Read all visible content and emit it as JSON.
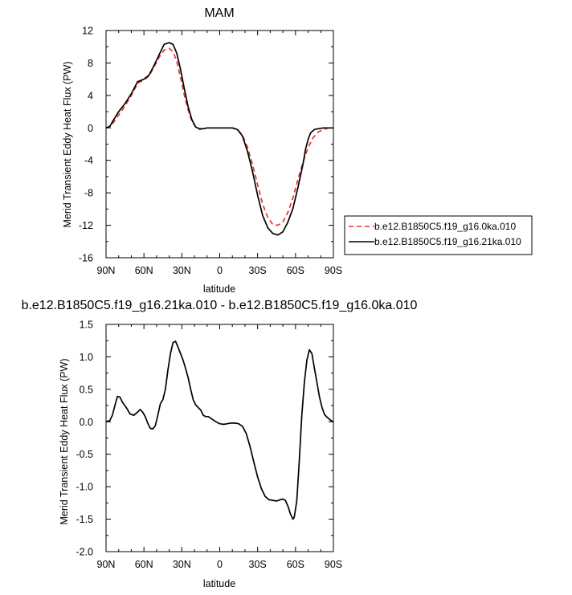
{
  "chart_data": [
    {
      "type": "line",
      "title": "MAM",
      "xlabel": "latitude",
      "ylabel": "Merid Transient Eddy Heat Flux (PW)",
      "xlim": [
        90,
        -90
      ],
      "ylim": [
        -16,
        12
      ],
      "x_ticks": [
        90,
        60,
        30,
        0,
        -30,
        -60,
        -90
      ],
      "x_tick_labels": [
        "90N",
        "60N",
        "30N",
        "0",
        "30S",
        "60S",
        "90S"
      ],
      "y_ticks": [
        -16,
        -12,
        -8,
        -4,
        0,
        4,
        8,
        12
      ],
      "y_tick_labels": [
        "-16",
        "-12",
        "-8",
        "-4",
        "0",
        "4",
        "8",
        "12"
      ],
      "legend": "right-outside",
      "series": [
        {
          "name": "b.e12.B1850C5.f19_g16.0ka.010",
          "color": "#e8322d",
          "style": "dashed",
          "points": [
            [
              90,
              0
            ],
            [
              87,
              0.1
            ],
            [
              84,
              0.7
            ],
            [
              80,
              1.6
            ],
            [
              75,
              2.7
            ],
            [
              70,
              4.0
            ],
            [
              65,
              5.5
            ],
            [
              60,
              5.9
            ],
            [
              56,
              6.4
            ],
            [
              52,
              7.5
            ],
            [
              48,
              8.7
            ],
            [
              44,
              9.6
            ],
            [
              40,
              9.8
            ],
            [
              37,
              9.4
            ],
            [
              34,
              8.2
            ],
            [
              31,
              6.2
            ],
            [
              28,
              4.0
            ],
            [
              25,
              2.2
            ],
            [
              22,
              0.8
            ],
            [
              19,
              0.1
            ],
            [
              16,
              -0.2
            ],
            [
              13,
              -0.1
            ],
            [
              10,
              0
            ],
            [
              5,
              0
            ],
            [
              0,
              0
            ],
            [
              -5,
              0
            ],
            [
              -10,
              0
            ],
            [
              -14,
              -0.2
            ],
            [
              -18,
              -0.9
            ],
            [
              -22,
              -2.4
            ],
            [
              -26,
              -4.5
            ],
            [
              -30,
              -7.0
            ],
            [
              -34,
              -9.4
            ],
            [
              -38,
              -11.0
            ],
            [
              -42,
              -11.9
            ],
            [
              -46,
              -12.0
            ],
            [
              -50,
              -11.6
            ],
            [
              -54,
              -10.4
            ],
            [
              -58,
              -8.6
            ],
            [
              -62,
              -6.3
            ],
            [
              -66,
              -4.2
            ],
            [
              -70,
              -2.4
            ],
            [
              -74,
              -1.2
            ],
            [
              -78,
              -0.5
            ],
            [
              -82,
              -0.2
            ],
            [
              -86,
              0
            ],
            [
              -90,
              0
            ]
          ]
        },
        {
          "name": "b.e12.B1850C5.f19_g16.21ka.010",
          "color": "#000000",
          "style": "solid",
          "points": [
            [
              90,
              0
            ],
            [
              87,
              0.2
            ],
            [
              84,
              1.0
            ],
            [
              80,
              2.0
            ],
            [
              75,
              3.0
            ],
            [
              70,
              4.2
            ],
            [
              65,
              5.7
            ],
            [
              60,
              6.0
            ],
            [
              56,
              6.5
            ],
            [
              52,
              7.7
            ],
            [
              48,
              9.0
            ],
            [
              44,
              10.3
            ],
            [
              40,
              10.5
            ],
            [
              37,
              10.3
            ],
            [
              34,
              9.2
            ],
            [
              31,
              7.2
            ],
            [
              28,
              4.8
            ],
            [
              25,
              2.6
            ],
            [
              22,
              1.0
            ],
            [
              19,
              0.1
            ],
            [
              16,
              -0.1
            ],
            [
              13,
              -0.1
            ],
            [
              10,
              0
            ],
            [
              5,
              0
            ],
            [
              0,
              0
            ],
            [
              -5,
              0
            ],
            [
              -10,
              0
            ],
            [
              -14,
              -0.2
            ],
            [
              -18,
              -1.0
            ],
            [
              -22,
              -2.9
            ],
            [
              -26,
              -5.4
            ],
            [
              -30,
              -8.3
            ],
            [
              -34,
              -10.8
            ],
            [
              -38,
              -12.3
            ],
            [
              -42,
              -13.0
            ],
            [
              -46,
              -13.2
            ],
            [
              -50,
              -12.8
            ],
            [
              -54,
              -11.6
            ],
            [
              -58,
              -9.9
            ],
            [
              -62,
              -7.3
            ],
            [
              -66,
              -4.4
            ],
            [
              -68,
              -2.6
            ],
            [
              -70,
              -1.4
            ],
            [
              -72,
              -0.6
            ],
            [
              -75,
              -0.2
            ],
            [
              -78,
              -0.1
            ],
            [
              -82,
              0
            ],
            [
              -86,
              0
            ],
            [
              -90,
              0
            ]
          ]
        }
      ]
    },
    {
      "type": "line",
      "title": "b.e12.B1850C5.f19_g16.21ka.010 - b.e12.B1850C5.f19_g16.0ka.010",
      "xlabel": "latitude",
      "ylabel": "Merid Transient Eddy Heat Flux (PW)",
      "xlim": [
        90,
        -90
      ],
      "ylim": [
        -2.0,
        1.5
      ],
      "x_ticks": [
        90,
        60,
        30,
        0,
        -30,
        -60,
        -90
      ],
      "x_tick_labels": [
        "90N",
        "60N",
        "30N",
        "0",
        "30S",
        "60S",
        "90S"
      ],
      "y_ticks": [
        -2.0,
        -1.5,
        -1.0,
        -0.5,
        0.0,
        0.5,
        1.0,
        1.5
      ],
      "y_tick_labels": [
        "-2.0",
        "-1.5",
        "-1.0",
        "-0.5",
        "0.0",
        "0.5",
        "1.0",
        "1.5"
      ],
      "series": [
        {
          "color": "#000000",
          "style": "solid",
          "points": [
            [
              90,
              0
            ],
            [
              87,
              0.02
            ],
            [
              85,
              0.1
            ],
            [
              83,
              0.25
            ],
            [
              81,
              0.39
            ],
            [
              79,
              0.38
            ],
            [
              77,
              0.3
            ],
            [
              74,
              0.22
            ],
            [
              71,
              0.12
            ],
            [
              68,
              0.1
            ],
            [
              65,
              0.15
            ],
            [
              63,
              0.19
            ],
            [
              61,
              0.15
            ],
            [
              59,
              0.08
            ],
            [
              57,
              -0.02
            ],
            [
              55,
              -0.1
            ],
            [
              53,
              -0.11
            ],
            [
              51,
              -0.06
            ],
            [
              49,
              0.1
            ],
            [
              47,
              0.28
            ],
            [
              45,
              0.34
            ],
            [
              43,
              0.5
            ],
            [
              41,
              0.8
            ],
            [
              39,
              1.05
            ],
            [
              37,
              1.22
            ],
            [
              35,
              1.24
            ],
            [
              33,
              1.15
            ],
            [
              31,
              1.05
            ],
            [
              29,
              0.95
            ],
            [
              27,
              0.82
            ],
            [
              25,
              0.68
            ],
            [
              23,
              0.5
            ],
            [
              21,
              0.34
            ],
            [
              19,
              0.26
            ],
            [
              17,
              0.22
            ],
            [
              15,
              0.18
            ],
            [
              13,
              0.1
            ],
            [
              11,
              0.08
            ],
            [
              9,
              0.08
            ],
            [
              6,
              0.04
            ],
            [
              3,
              0
            ],
            [
              0,
              -0.03
            ],
            [
              -3,
              -0.04
            ],
            [
              -6,
              -0.03
            ],
            [
              -9,
              -0.02
            ],
            [
              -12,
              -0.02
            ],
            [
              -15,
              -0.03
            ],
            [
              -18,
              -0.07
            ],
            [
              -21,
              -0.18
            ],
            [
              -24,
              -0.38
            ],
            [
              -27,
              -0.62
            ],
            [
              -30,
              -0.85
            ],
            [
              -33,
              -1.03
            ],
            [
              -36,
              -1.15
            ],
            [
              -39,
              -1.2
            ],
            [
              -42,
              -1.21
            ],
            [
              -45,
              -1.22
            ],
            [
              -48,
              -1.2
            ],
            [
              -50,
              -1.19
            ],
            [
              -52,
              -1.21
            ],
            [
              -54,
              -1.3
            ],
            [
              -56,
              -1.42
            ],
            [
              -58,
              -1.5
            ],
            [
              -59,
              -1.47
            ],
            [
              -61,
              -1.22
            ],
            [
              -63,
              -0.6
            ],
            [
              -65,
              0.1
            ],
            [
              -67,
              0.6
            ],
            [
              -69,
              0.95
            ],
            [
              -71,
              1.11
            ],
            [
              -73,
              1.05
            ],
            [
              -75,
              0.82
            ],
            [
              -77,
              0.6
            ],
            [
              -79,
              0.38
            ],
            [
              -81,
              0.22
            ],
            [
              -83,
              0.11
            ],
            [
              -85,
              0.07
            ],
            [
              -88,
              0.02
            ],
            [
              -90,
              0
            ]
          ]
        }
      ]
    }
  ]
}
